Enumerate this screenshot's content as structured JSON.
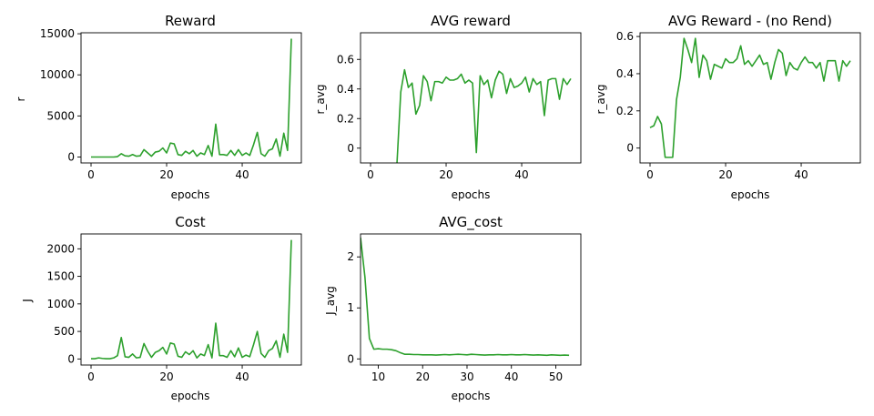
{
  "line_color": "#2ca02c",
  "chart_data": [
    {
      "type": "line",
      "title": "Reward",
      "xlabel": "epochs",
      "ylabel": "r",
      "xlim": [
        -2.65,
        55.65
      ],
      "ylim": [
        -720,
        15120
      ],
      "xticks": [
        0,
        20,
        40
      ],
      "yticks": [
        0,
        5000,
        10000,
        15000
      ],
      "x": [
        0,
        1,
        2,
        3,
        4,
        5,
        6,
        7,
        8,
        9,
        10,
        11,
        12,
        13,
        14,
        15,
        16,
        17,
        18,
        19,
        20,
        21,
        22,
        23,
        24,
        25,
        26,
        27,
        28,
        29,
        30,
        31,
        32,
        33,
        34,
        35,
        36,
        37,
        38,
        39,
        40,
        41,
        42,
        43,
        44,
        45,
        46,
        47,
        48,
        49,
        50,
        51,
        52,
        53
      ],
      "series": [
        {
          "values": [
            0,
            0,
            0,
            0,
            0,
            0,
            0,
            50,
            400,
            150,
            100,
            300,
            100,
            150,
            900,
            500,
            100,
            600,
            700,
            1100,
            500,
            1700,
            1600,
            300,
            200,
            700,
            400,
            800,
            100,
            500,
            300,
            1400,
            100,
            4000,
            300,
            300,
            200,
            800,
            200,
            900,
            200,
            500,
            200,
            1500,
            3000,
            400,
            100,
            800,
            1000,
            2200,
            100,
            2900,
            800,
            14400
          ]
        }
      ]
    },
    {
      "type": "line",
      "title": "AVG reward",
      "xlabel": "epochs",
      "ylabel": "r_avg",
      "xlim": [
        -2.65,
        55.65
      ],
      "ylim": [
        -0.1,
        0.78
      ],
      "xticks": [
        0,
        20,
        40
      ],
      "yticks": [
        0.0,
        0.2,
        0.4,
        0.6
      ],
      "x": [
        7,
        8,
        9,
        10,
        11,
        12,
        13,
        14,
        15,
        16,
        17,
        18,
        19,
        20,
        21,
        22,
        23,
        24,
        25,
        26,
        27,
        28,
        29,
        30,
        31,
        32,
        33,
        34,
        35,
        36,
        37,
        38,
        39,
        40,
        41,
        42,
        43,
        44,
        45,
        46,
        47,
        48,
        49,
        50,
        51,
        52,
        53
      ],
      "series": [
        {
          "values": [
            -0.1,
            0.38,
            0.53,
            0.41,
            0.44,
            0.23,
            0.29,
            0.49,
            0.45,
            0.32,
            0.45,
            0.45,
            0.44,
            0.48,
            0.46,
            0.46,
            0.47,
            0.5,
            0.44,
            0.46,
            0.44,
            -0.03,
            0.49,
            0.43,
            0.46,
            0.34,
            0.46,
            0.52,
            0.5,
            0.37,
            0.47,
            0.41,
            0.42,
            0.44,
            0.48,
            0.38,
            0.47,
            0.43,
            0.45,
            0.22,
            0.46,
            0.47,
            0.47,
            0.33,
            0.47,
            0.43,
            0.47
          ]
        }
      ]
    },
    {
      "type": "line",
      "title": "AVG Reward - (no Rend)",
      "xlabel": "epochs",
      "ylabel": "r_avg",
      "xlim": [
        -2.65,
        55.65
      ],
      "ylim": [
        -0.08,
        0.62
      ],
      "xticks": [
        0,
        20,
        40
      ],
      "yticks": [
        0.0,
        0.2,
        0.4,
        0.6
      ],
      "x": [
        0,
        1,
        2,
        3,
        4,
        5,
        6,
        7,
        8,
        9,
        10,
        11,
        12,
        13,
        14,
        15,
        16,
        17,
        18,
        19,
        20,
        21,
        22,
        23,
        24,
        25,
        26,
        27,
        28,
        29,
        30,
        31,
        32,
        33,
        34,
        35,
        36,
        37,
        38,
        39,
        40,
        41,
        42,
        43,
        44,
        45,
        46,
        47,
        48,
        49,
        50,
        51,
        52,
        53
      ],
      "series": [
        {
          "values": [
            0.11,
            0.12,
            0.17,
            0.13,
            -0.05,
            -0.05,
            -0.05,
            0.26,
            0.38,
            0.59,
            0.53,
            0.46,
            0.59,
            0.38,
            0.5,
            0.47,
            0.37,
            0.45,
            0.44,
            0.43,
            0.48,
            0.46,
            0.46,
            0.48,
            0.55,
            0.45,
            0.47,
            0.44,
            0.47,
            0.5,
            0.45,
            0.46,
            0.37,
            0.46,
            0.53,
            0.51,
            0.39,
            0.46,
            0.43,
            0.42,
            0.46,
            0.49,
            0.46,
            0.46,
            0.43,
            0.46,
            0.36,
            0.47,
            0.47,
            0.47,
            0.36,
            0.47,
            0.44,
            0.47
          ]
        }
      ]
    },
    {
      "type": "line",
      "title": "Cost",
      "xlabel": "epochs",
      "ylabel": "J",
      "xlim": [
        -2.65,
        55.65
      ],
      "ylim": [
        -110,
        2270
      ],
      "xticks": [
        0,
        20,
        40
      ],
      "yticks": [
        0,
        500,
        1000,
        1500,
        2000
      ],
      "x": [
        0,
        1,
        2,
        3,
        4,
        5,
        6,
        7,
        8,
        9,
        10,
        11,
        12,
        13,
        14,
        15,
        16,
        17,
        18,
        19,
        20,
        21,
        22,
        23,
        24,
        25,
        26,
        27,
        28,
        29,
        30,
        31,
        32,
        33,
        34,
        35,
        36,
        37,
        38,
        39,
        40,
        41,
        42,
        43,
        44,
        45,
        46,
        47,
        48,
        49,
        50,
        51,
        52,
        53
      ],
      "series": [
        {
          "values": [
            5,
            5,
            20,
            10,
            5,
            5,
            20,
            60,
            390,
            40,
            30,
            90,
            20,
            30,
            280,
            140,
            30,
            120,
            150,
            210,
            90,
            290,
            270,
            50,
            30,
            130,
            80,
            150,
            20,
            90,
            60,
            260,
            20,
            650,
            60,
            60,
            30,
            150,
            40,
            200,
            30,
            70,
            40,
            260,
            500,
            100,
            30,
            150,
            190,
            330,
            30,
            450,
            120,
            2160
          ]
        }
      ]
    },
    {
      "type": "line",
      "title": "AVG_cost",
      "xlabel": "epochs",
      "ylabel": "J_avg",
      "xlim": [
        6.0,
        55.65
      ],
      "ylim": [
        -0.12,
        2.45
      ],
      "xticks": [
        10,
        20,
        30,
        40,
        50
      ],
      "yticks": [
        0,
        1,
        2
      ],
      "x": [
        6,
        7,
        8,
        9,
        10,
        11,
        12,
        13,
        14,
        15,
        16,
        17,
        18,
        19,
        20,
        21,
        22,
        23,
        24,
        25,
        26,
        27,
        28,
        29,
        30,
        31,
        32,
        33,
        34,
        35,
        36,
        37,
        38,
        39,
        40,
        41,
        42,
        43,
        44,
        45,
        46,
        47,
        48,
        49,
        50,
        51,
        52,
        53
      ],
      "series": [
        {
          "values": [
            2.38,
            1.6,
            0.4,
            0.19,
            0.2,
            0.19,
            0.19,
            0.18,
            0.16,
            0.12,
            0.09,
            0.09,
            0.085,
            0.085,
            0.08,
            0.08,
            0.08,
            0.075,
            0.08,
            0.085,
            0.08,
            0.085,
            0.09,
            0.085,
            0.08,
            0.09,
            0.085,
            0.08,
            0.075,
            0.08,
            0.08,
            0.085,
            0.08,
            0.08,
            0.085,
            0.08,
            0.08,
            0.085,
            0.08,
            0.075,
            0.08,
            0.075,
            0.07,
            0.08,
            0.075,
            0.07,
            0.075,
            0.07
          ]
        }
      ]
    }
  ]
}
